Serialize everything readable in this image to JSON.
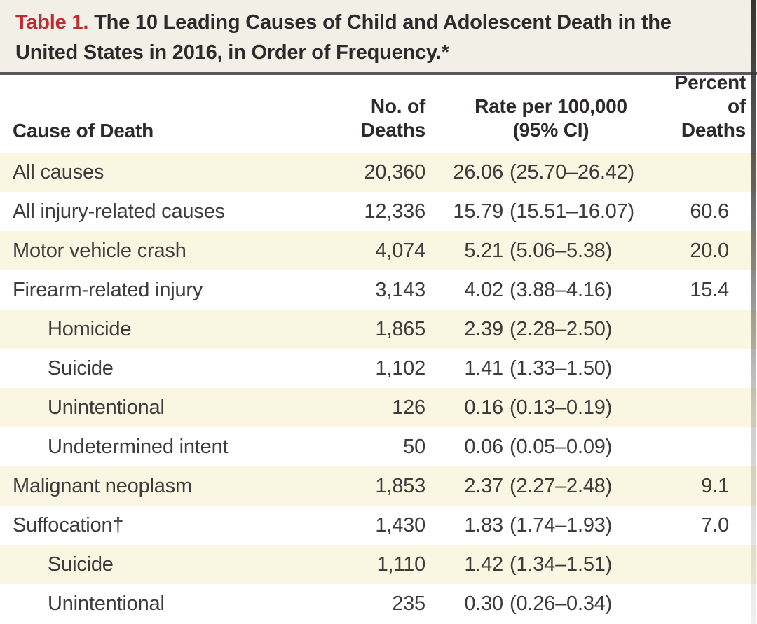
{
  "table": {
    "label": "Table 1.",
    "title": "The 10 Leading Causes of Child and Adolescent Death in the United States in 2016, in Order of Frequency.*",
    "columns": {
      "cause": "Cause of Death",
      "deaths_line1": "No. of",
      "deaths_line2": "Deaths",
      "rate_line1": "Rate per 100,000",
      "rate_line2": "(95% CI)",
      "percent_line1": "Percent",
      "percent_line2": "of Deaths"
    },
    "rows": [
      {
        "cause": "All causes",
        "indent": false,
        "deaths": "20,360",
        "rate": "26.06",
        "ci": "(25.70–26.42)",
        "percent": ""
      },
      {
        "cause": "All injury-related causes",
        "indent": false,
        "deaths": "12,336",
        "rate": "15.79",
        "ci": "(15.51–16.07)",
        "percent": "60.6"
      },
      {
        "cause": "Motor vehicle crash",
        "indent": false,
        "deaths": "4,074",
        "rate": "5.21",
        "ci": "(5.06–5.38)",
        "percent": "20.0"
      },
      {
        "cause": "Firearm-related injury",
        "indent": false,
        "deaths": "3,143",
        "rate": "4.02",
        "ci": "(3.88–4.16)",
        "percent": "15.4"
      },
      {
        "cause": "Homicide",
        "indent": true,
        "deaths": "1,865",
        "rate": "2.39",
        "ci": "(2.28–2.50)",
        "percent": ""
      },
      {
        "cause": "Suicide",
        "indent": true,
        "deaths": "1,102",
        "rate": "1.41",
        "ci": "(1.33–1.50)",
        "percent": ""
      },
      {
        "cause": "Unintentional",
        "indent": true,
        "deaths": "126",
        "rate": "0.16",
        "ci": "(0.13–0.19)",
        "percent": ""
      },
      {
        "cause": "Undetermined intent",
        "indent": true,
        "deaths": "50",
        "rate": "0.06",
        "ci": "(0.05–0.09)",
        "percent": ""
      },
      {
        "cause": "Malignant neoplasm",
        "indent": false,
        "deaths": "1,853",
        "rate": "2.37",
        "ci": "(2.27–2.48)",
        "percent": "9.1"
      },
      {
        "cause": "Suffocation†",
        "indent": false,
        "deaths": "1,430",
        "rate": "1.83",
        "ci": "(1.74–1.93)",
        "percent": "7.0"
      },
      {
        "cause": "Suicide",
        "indent": true,
        "deaths": "1,110",
        "rate": "1.42",
        "ci": "(1.34–1.51)",
        "percent": ""
      },
      {
        "cause": "Unintentional",
        "indent": true,
        "deaths": "235",
        "rate": "0.30",
        "ci": "(0.26–0.34)",
        "percent": ""
      }
    ],
    "colors": {
      "caption_background": "#f2efe7",
      "caption_label_red": "#bf2b33",
      "row_stripe_cream": "#fbf6e1",
      "row_white": "#ffffff",
      "text_dark": "#2e2a2b",
      "divider_gray": "#59575b"
    }
  }
}
